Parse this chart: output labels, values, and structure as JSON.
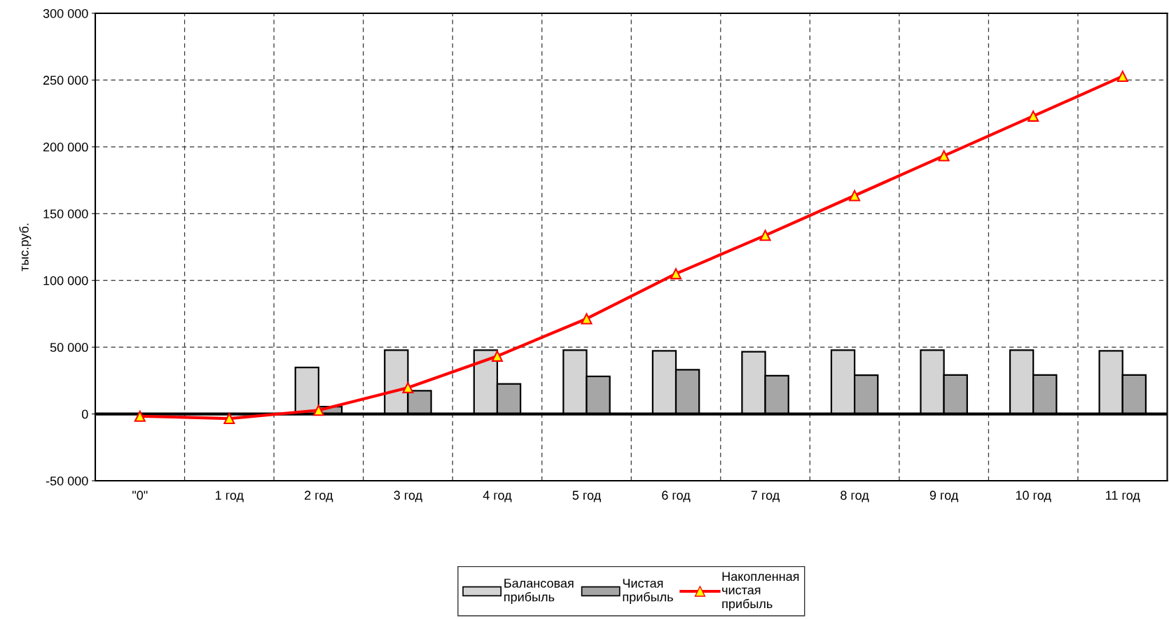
{
  "chart_data": {
    "type": "bar",
    "ylabel": "тыс.руб.",
    "categories": [
      "\"0\"",
      "1 год",
      "2 год",
      "3 год",
      "4 год",
      "5 год",
      "6 год",
      "7 год",
      "8 год",
      "9 год",
      "10 год",
      "11 год"
    ],
    "series": [
      {
        "name": "Балансовая\nприбыль",
        "color": "#d4d4d4",
        "values": [
          null,
          null,
          34800,
          47800,
          47800,
          47800,
          47200,
          46600,
          47800,
          47800,
          47800,
          47200
        ]
      },
      {
        "name": "Чистая\nприбыль",
        "color": "#a6a6a6",
        "values": [
          null,
          null,
          5500,
          17400,
          22500,
          28100,
          33100,
          28700,
          29000,
          29200,
          29200,
          29200
        ]
      },
      {
        "name": "Накопленная\nчистая\nприбыль",
        "type": "line",
        "color": "#ff0000",
        "marker": "triangle",
        "values": [
          -1700,
          -3400,
          2800,
          19700,
          43300,
          71300,
          105000,
          133700,
          163500,
          193300,
          223000,
          252800
        ]
      }
    ],
    "ylim": [
      -50000,
      300000
    ],
    "yticks": [
      {
        "value": -50000,
        "label": "-50 000"
      },
      {
        "value": 0,
        "label": "0"
      },
      {
        "value": 50000,
        "label": "50 000"
      },
      {
        "value": 100000,
        "label": "100 000"
      },
      {
        "value": 150000,
        "label": "150 000"
      },
      {
        "value": 200000,
        "label": "200 000"
      },
      {
        "value": 250000,
        "label": "250 000"
      },
      {
        "value": 300000,
        "label": "300 000"
      }
    ],
    "grid": true,
    "legend": "bottom"
  }
}
